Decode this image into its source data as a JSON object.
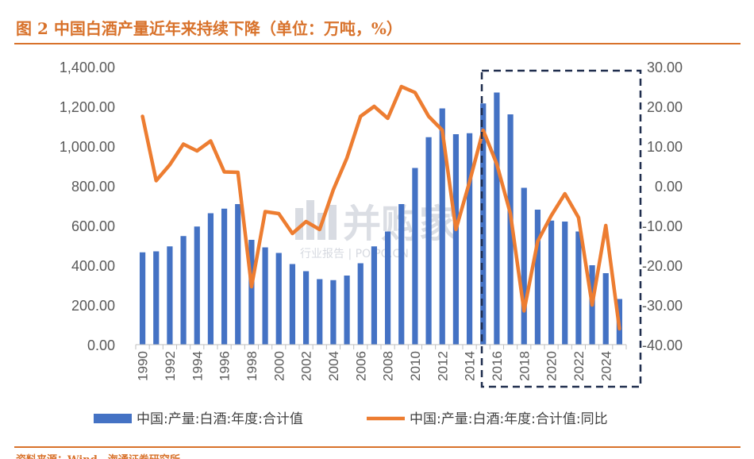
{
  "header": {
    "title": "图 2  中国白酒产量近年来持续下降（单位：万吨，%）"
  },
  "footer": {
    "source_fragment": "资料来源：Wind，海通证券研究所"
  },
  "watermark": {
    "main": "并购家",
    "sub": "行业报告 | POIPO.CN",
    "icon": "building-logo-icon"
  },
  "colors": {
    "bar": "#4472c4",
    "line": "#ed7d31",
    "accent": "#d8722b",
    "highlight_box": "#1f2d4d"
  },
  "chart_data": {
    "type": "bar",
    "title": "",
    "x": [
      1990,
      1991,
      1992,
      1993,
      1994,
      1995,
      1996,
      1997,
      1998,
      1999,
      2000,
      2001,
      2002,
      2003,
      2004,
      2005,
      2006,
      2007,
      2008,
      2009,
      2010,
      2011,
      2012,
      2013,
      2014,
      2015,
      2016,
      2017,
      2018,
      2019,
      2020,
      2021,
      2022,
      2023,
      2024,
      2025
    ],
    "x_tick_labels": [
      "1990",
      "1992",
      "1994",
      "1996",
      "1998",
      "2000",
      "2002",
      "2004",
      "2006",
      "2008",
      "2010",
      "2012",
      "2014",
      "2016",
      "2018",
      "2020",
      "2022",
      "2024"
    ],
    "y_left": {
      "ylim": [
        0,
        1400
      ],
      "ticks": [
        "0.00",
        "200.00",
        "400.00",
        "600.00",
        "800.00",
        "1,000.00",
        "1,200.00",
        "1,400.00"
      ]
    },
    "y_right": {
      "ylim": [
        -40,
        30
      ],
      "ticks": [
        "-40.00",
        "-30.00",
        "-20.00",
        "-10.00",
        "0.00",
        "10.00",
        "20.00",
        "30.00"
      ]
    },
    "grid": false,
    "legend_position": "bottom",
    "series": [
      {
        "name": "中国:产量:白酒:年度:合计值",
        "type": "bar",
        "axis": "left",
        "values": [
          465,
          470,
          495,
          547,
          595,
          662,
          685,
          708,
          528,
          490,
          462,
          406,
          370,
          330,
          325,
          348,
          410,
          495,
          570,
          708,
          890,
          1045,
          1190,
          1060,
          1065,
          1215,
          1270,
          1160,
          790,
          680,
          625,
          620,
          570,
          400,
          360,
          230
        ]
      },
      {
        "name": "中国:产量:白酒:年度:合计值:同比",
        "type": "line",
        "axis": "right",
        "values": [
          17.5,
          1.3,
          5.3,
          10.5,
          8.8,
          11.3,
          3.5,
          3.4,
          -25.4,
          -6.5,
          -7.0,
          -12.0,
          -9.0,
          -11.0,
          -1.0,
          7.0,
          17.5,
          20.0,
          17.0,
          25.0,
          23.5,
          17.5,
          14.0,
          -11.0,
          1.0,
          14.0,
          5.5,
          -7.0,
          -31.5,
          -14.0,
          -7.5,
          -2.0,
          -8.0,
          -30.0,
          -10.0,
          -36.0
        ]
      }
    ],
    "highlight_box": {
      "from_year": 2016,
      "to_year": 2025,
      "style": "dashed"
    }
  }
}
